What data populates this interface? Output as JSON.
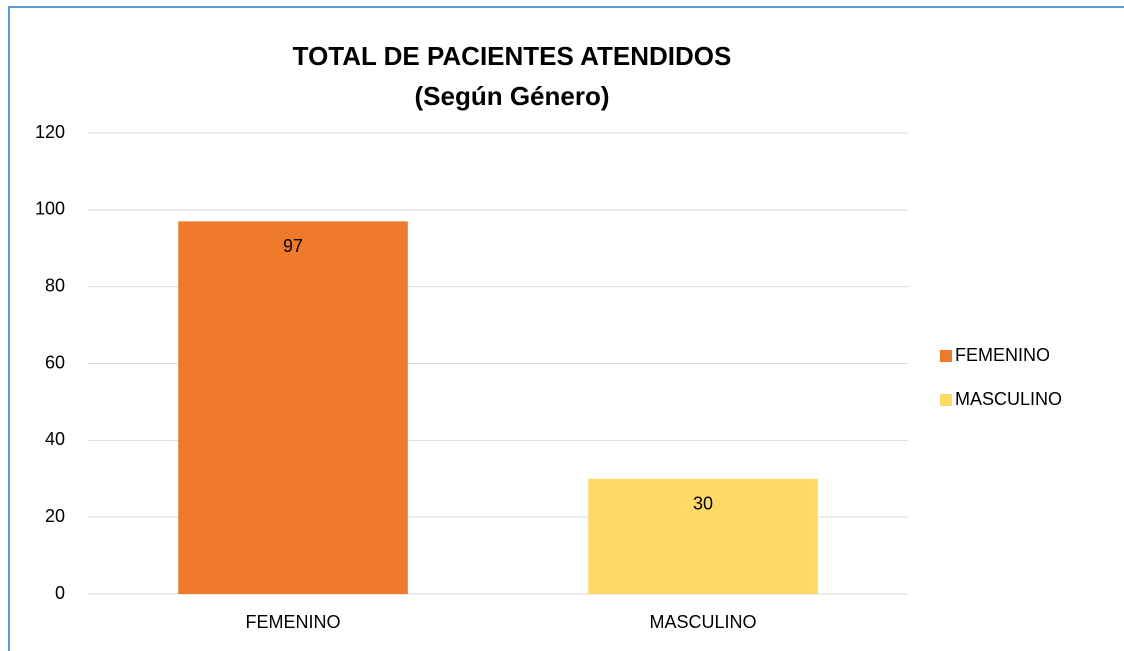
{
  "chart_data": {
    "type": "bar",
    "title": "TOTAL DE PACIENTES ATENDIDOS",
    "subtitle": "(Según Género)",
    "categories": [
      "FEMENINO",
      "MASCULINO"
    ],
    "values": [
      97,
      30
    ],
    "colors": [
      "#ef7a2c",
      "#ffd966"
    ],
    "ylim": [
      0,
      120
    ],
    "yticks": [
      0,
      20,
      40,
      60,
      80,
      100,
      120
    ],
    "grid": true,
    "legend": "right"
  }
}
